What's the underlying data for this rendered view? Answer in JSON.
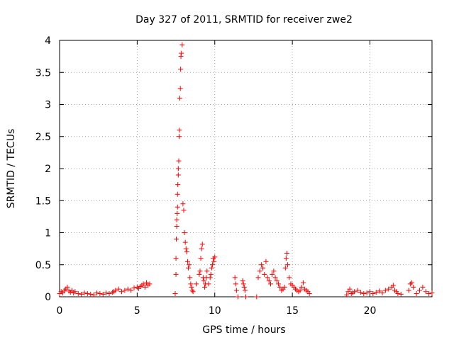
{
  "chart_data": {
    "type": "scatter",
    "title": "Day 327 of 2011, SRMTID for receiver zwe2",
    "xlabel": "GPS time / hours",
    "ylabel": "SRMTID / TECUs",
    "xlim": [
      0,
      24
    ],
    "ylim": [
      0,
      4
    ],
    "xticks": [
      0,
      5,
      10,
      15,
      20
    ],
    "yticks": [
      0,
      0.5,
      1,
      1.5,
      2,
      2.5,
      3,
      3.5,
      4
    ],
    "xtick_labels": [
      "0",
      "5",
      "10",
      "15",
      "20"
    ],
    "ytick_labels": [
      "0",
      "0.5",
      "1",
      "1.5",
      "2",
      "2.5",
      "3",
      "3.5",
      "4"
    ],
    "grid": true,
    "marker": "+",
    "color": "#ff0000",
    "series": [
      {
        "x": [
          0.0,
          0.1,
          0.2,
          0.3,
          0.4,
          0.5,
          0.6,
          0.7,
          0.8,
          0.9,
          1.0,
          1.2,
          1.4,
          1.6,
          1.8,
          2.0,
          2.2,
          2.4,
          2.6,
          2.8,
          3.0,
          3.2,
          3.4,
          3.5,
          3.6,
          3.8,
          4.0,
          4.2,
          4.4,
          4.6,
          4.8,
          5.0,
          5.1,
          5.2,
          5.3,
          5.4,
          5.5,
          5.6,
          5.7,
          5.8,
          7.45,
          7.5,
          7.5,
          7.52,
          7.55,
          7.55,
          7.58,
          7.6,
          7.6,
          7.62,
          7.65,
          7.65,
          7.68,
          7.7,
          7.72,
          7.75,
          7.78,
          7.8,
          7.82,
          7.85,
          7.9,
          7.95,
          8.0,
          8.05,
          8.1,
          8.15,
          8.2,
          8.25,
          8.3,
          8.35,
          8.4,
          8.45,
          8.5,
          8.55,
          8.6,
          8.8,
          9.0,
          9.05,
          9.1,
          9.15,
          9.2,
          9.25,
          9.3,
          9.35,
          9.4,
          9.45,
          9.5,
          9.6,
          9.7,
          9.75,
          9.8,
          9.85,
          9.9,
          9.95,
          10.0,
          11.3,
          11.35,
          11.4,
          11.5,
          11.8,
          11.85,
          11.9,
          11.95,
          12.0,
          12.7,
          12.8,
          12.9,
          13.0,
          13.1,
          13.2,
          13.3,
          13.4,
          13.5,
          13.6,
          13.7,
          13.8,
          13.9,
          14.0,
          14.1,
          14.2,
          14.3,
          14.4,
          14.5,
          14.55,
          14.6,
          14.65,
          14.7,
          14.8,
          14.9,
          15.0,
          15.1,
          15.2,
          15.3,
          15.4,
          15.5,
          15.6,
          15.7,
          15.8,
          15.9,
          16.0,
          16.1,
          18.5,
          18.6,
          18.7,
          18.8,
          18.9,
          19.0,
          19.2,
          19.4,
          19.6,
          19.8,
          20.0,
          20.2,
          20.4,
          20.6,
          20.8,
          21.0,
          21.2,
          21.4,
          21.5,
          21.6,
          21.7,
          21.8,
          22.0,
          22.5,
          22.6,
          22.7,
          22.8,
          23.0,
          23.2,
          23.4,
          23.6,
          23.8,
          24.0
        ],
        "y": [
          0.05,
          0.08,
          0.06,
          0.1,
          0.12,
          0.15,
          0.09,
          0.07,
          0.1,
          0.06,
          0.08,
          0.05,
          0.04,
          0.06,
          0.05,
          0.04,
          0.03,
          0.06,
          0.05,
          0.04,
          0.06,
          0.05,
          0.07,
          0.08,
          0.1,
          0.12,
          0.08,
          0.1,
          0.12,
          0.1,
          0.14,
          0.15,
          0.13,
          0.16,
          0.18,
          0.2,
          0.15,
          0.22,
          0.18,
          0.2,
          0.05,
          0.35,
          0.6,
          0.9,
          1.1,
          1.2,
          1.3,
          1.4,
          1.6,
          1.75,
          1.9,
          2.0,
          2.12,
          2.5,
          2.6,
          3.1,
          3.25,
          3.55,
          3.75,
          3.8,
          3.93,
          1.45,
          1.35,
          1.0,
          0.85,
          0.75,
          0.7,
          0.55,
          0.45,
          0.5,
          0.3,
          0.2,
          0.15,
          0.1,
          0.08,
          0.2,
          0.35,
          0.4,
          0.6,
          0.75,
          0.82,
          0.3,
          0.25,
          0.15,
          0.2,
          0.3,
          0.4,
          0.2,
          0.3,
          0.35,
          0.45,
          0.5,
          0.6,
          0.55,
          0.62,
          0.3,
          0.2,
          0.1,
          0.0,
          0.25,
          0.2,
          0.15,
          0.1,
          0.0,
          0.0,
          0.3,
          0.4,
          0.5,
          0.45,
          0.35,
          0.55,
          0.3,
          0.25,
          0.2,
          0.35,
          0.4,
          0.3,
          0.25,
          0.2,
          0.15,
          0.1,
          0.12,
          0.15,
          0.45,
          0.6,
          0.68,
          0.5,
          0.3,
          0.2,
          0.18,
          0.15,
          0.12,
          0.1,
          0.08,
          0.1,
          0.15,
          0.22,
          0.12,
          0.1,
          0.08,
          0.05,
          0.03,
          0.08,
          0.12,
          0.05,
          0.06,
          0.08,
          0.1,
          0.07,
          0.05,
          0.06,
          0.08,
          0.05,
          0.07,
          0.09,
          0.06,
          0.1,
          0.12,
          0.15,
          0.18,
          0.1,
          0.08,
          0.05,
          0.04,
          0.1,
          0.2,
          0.22,
          0.15,
          0.05,
          0.1,
          0.15,
          0.08,
          0.05,
          0.06
        ]
      }
    ]
  }
}
